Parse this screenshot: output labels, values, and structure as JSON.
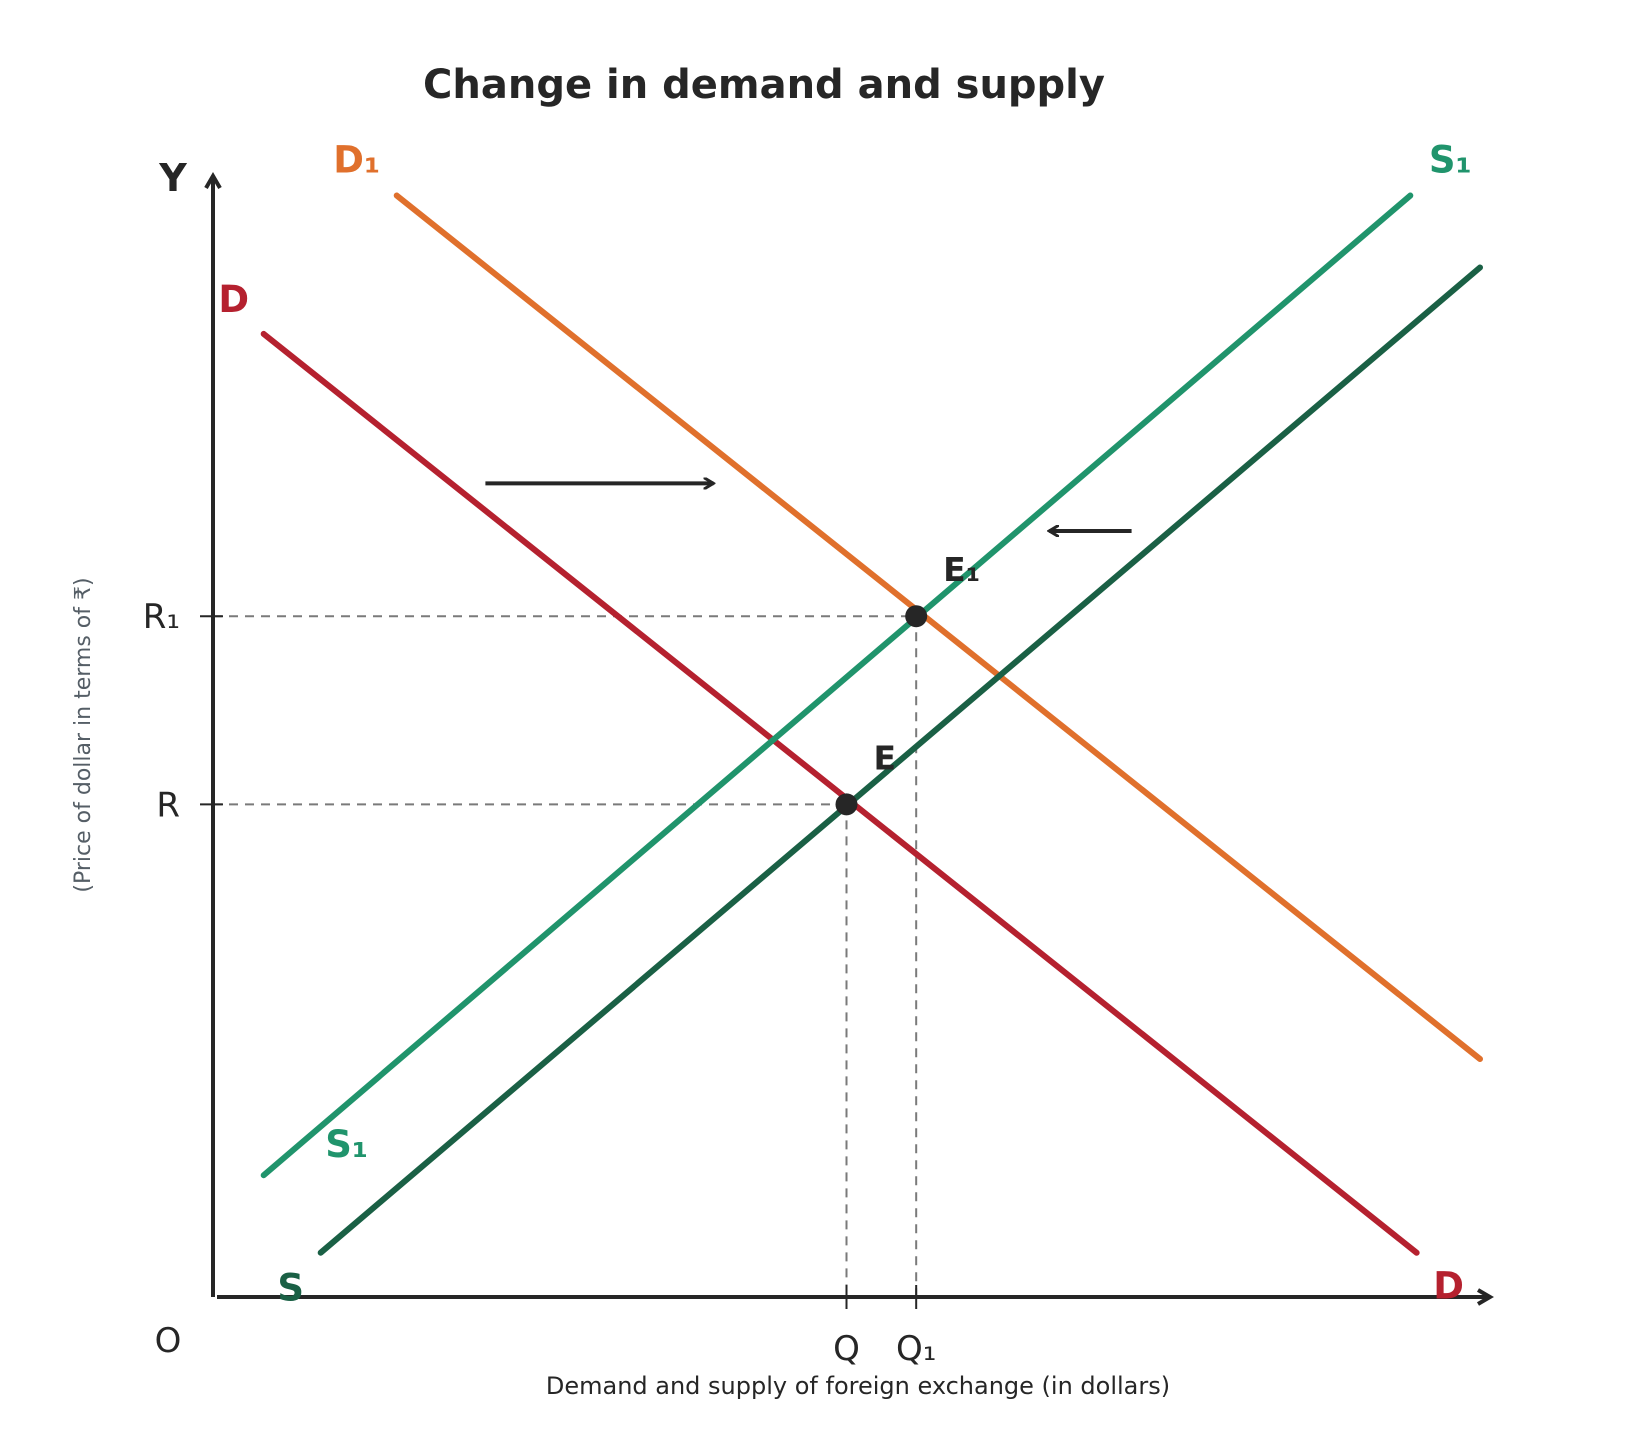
{
  "chart_data": {
    "type": "line",
    "title": "Change in demand and supply",
    "xlabel": "Demand and supply of foreign exchange (in dollars)",
    "ylabel": "(Price of dollar in terms of ₹)",
    "y_axis_letter": "Y",
    "origin_label": "O",
    "xlim": [
      0,
      100
    ],
    "ylim": [
      0,
      100
    ],
    "series": [
      {
        "name": "D",
        "color": "#b5212f",
        "x": [
          4,
          95
        ],
        "y": [
          87,
          4
        ]
      },
      {
        "name": "D₁",
        "color": "#e0702c",
        "x": [
          14.5,
          100
        ],
        "y": [
          99.5,
          21.5
        ]
      },
      {
        "name": "S",
        "color": "#1a6045",
        "x": [
          8.5,
          100
        ],
        "y": [
          4,
          93
        ]
      },
      {
        "name": "S₁",
        "color": "#20946c",
        "x": [
          4,
          94.5
        ],
        "y": [
          11,
          99.5
        ]
      }
    ],
    "curve_labels": [
      {
        "text": "D",
        "series": "D",
        "end": "top",
        "color": "#b5212f"
      },
      {
        "text": "D",
        "series": "D",
        "end": "bottom",
        "color": "#b5212f"
      },
      {
        "text": "D₁",
        "series": "D₁",
        "end": "top",
        "color": "#e0702c"
      },
      {
        "text": "S",
        "series": "S",
        "end": "bottom",
        "color": "#1a6045"
      },
      {
        "text": "S₁",
        "series": "S₁",
        "end": "top",
        "color": "#20946c"
      },
      {
        "text": "S₁",
        "series": "S₁",
        "end": "bottom",
        "color": "#20946c"
      }
    ],
    "points": [
      {
        "label": "E",
        "x": 50,
        "y": 44.5
      },
      {
        "label": "E₁",
        "x": 55.5,
        "y": 61.5
      }
    ],
    "y_ticks": [
      {
        "label": "R₁",
        "value": 61.5
      },
      {
        "label": "R",
        "value": 44.5
      }
    ],
    "x_ticks": [
      {
        "label": "Q",
        "value": 50
      },
      {
        "label": "Q₁",
        "value": 55.5
      }
    ],
    "shift_arrows": [
      {
        "direction": "right",
        "from": [
          21.5,
          73.5
        ],
        "to": [
          39.5,
          73.5
        ]
      },
      {
        "direction": "left",
        "from": [
          72.5,
          69.2
        ],
        "to": [
          66,
          69.2
        ]
      }
    ],
    "colors": {
      "axis": "#262626",
      "guide": "#7a7a7a",
      "point": "#262626"
    }
  }
}
